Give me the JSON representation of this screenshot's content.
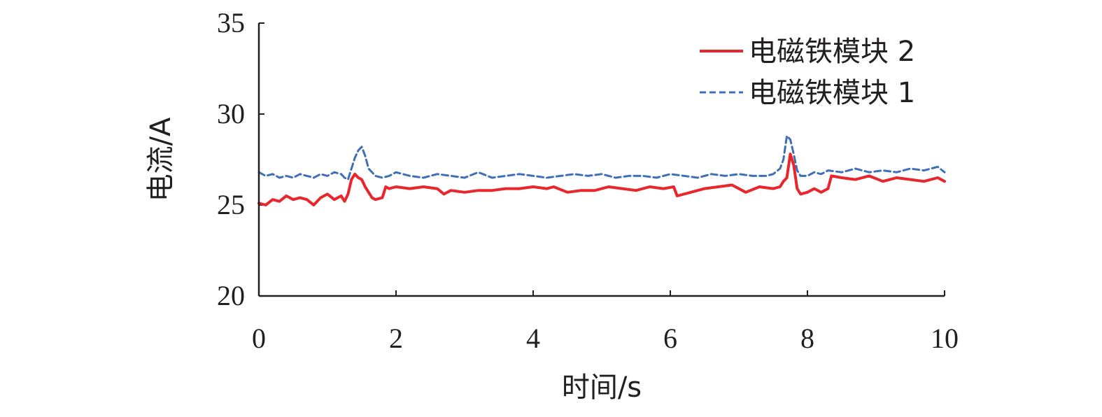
{
  "chart_data": {
    "type": "line",
    "xlabel": "时间/s",
    "ylabel": "电流/A",
    "xlim": [
      0,
      10
    ],
    "ylim": [
      20,
      35
    ],
    "x_ticks": [
      0,
      2,
      4,
      6,
      8,
      10
    ],
    "y_ticks": [
      20,
      25,
      30,
      35
    ],
    "x_tick_labels": [
      "0",
      "2",
      "4",
      "6",
      "8",
      "10"
    ],
    "y_tick_labels": [
      "20",
      "25",
      "30",
      "35"
    ],
    "grid": false,
    "legend_position": "top-right",
    "series": [
      {
        "name": "电磁铁模块 2",
        "color": "#e8262b",
        "style": "solid",
        "x": [
          0,
          0.1,
          0.2,
          0.3,
          0.4,
          0.5,
          0.6,
          0.7,
          0.8,
          0.9,
          1.0,
          1.1,
          1.2,
          1.25,
          1.3,
          1.35,
          1.4,
          1.45,
          1.5,
          1.55,
          1.6,
          1.65,
          1.7,
          1.8,
          1.85,
          1.9,
          2.0,
          2.2,
          2.4,
          2.6,
          2.7,
          2.8,
          3.0,
          3.2,
          3.4,
          3.6,
          3.8,
          4.0,
          4.2,
          4.3,
          4.5,
          4.7,
          4.9,
          5.1,
          5.3,
          5.5,
          5.7,
          5.9,
          6.05,
          6.1,
          6.3,
          6.5,
          6.7,
          6.9,
          7.1,
          7.3,
          7.5,
          7.6,
          7.65,
          7.7,
          7.75,
          7.8,
          7.85,
          7.9,
          8.0,
          8.1,
          8.2,
          8.3,
          8.35,
          8.5,
          8.7,
          8.9,
          9.1,
          9.3,
          9.5,
          9.7,
          9.9,
          10.0
        ],
        "y": [
          25.1,
          25.0,
          25.3,
          25.2,
          25.5,
          25.3,
          25.4,
          25.3,
          25.0,
          25.4,
          25.6,
          25.3,
          25.5,
          25.2,
          25.6,
          26.4,
          26.7,
          26.5,
          26.4,
          26.0,
          25.7,
          25.4,
          25.3,
          25.4,
          26.0,
          25.9,
          26.0,
          25.9,
          26.0,
          25.9,
          25.6,
          25.8,
          25.7,
          25.8,
          25.8,
          25.9,
          25.9,
          26.0,
          25.9,
          26.0,
          25.7,
          25.8,
          25.8,
          26.0,
          25.9,
          25.8,
          26.0,
          25.9,
          26.0,
          25.5,
          25.7,
          25.9,
          26.0,
          26.1,
          25.7,
          26.0,
          25.9,
          26.0,
          26.3,
          26.5,
          27.8,
          27.2,
          25.9,
          25.6,
          25.7,
          25.9,
          25.7,
          25.9,
          26.6,
          26.5,
          26.4,
          26.6,
          26.3,
          26.5,
          26.4,
          26.3,
          26.5,
          26.3
        ]
      },
      {
        "name": "电磁铁模块 1",
        "color": "#3f6fb6",
        "style": "dashed",
        "x": [
          0,
          0.1,
          0.2,
          0.3,
          0.4,
          0.5,
          0.6,
          0.7,
          0.8,
          0.9,
          1.0,
          1.1,
          1.2,
          1.25,
          1.3,
          1.35,
          1.4,
          1.45,
          1.5,
          1.55,
          1.6,
          1.7,
          1.8,
          1.9,
          2.0,
          2.2,
          2.4,
          2.6,
          2.8,
          3.0,
          3.2,
          3.4,
          3.6,
          3.8,
          4.0,
          4.2,
          4.4,
          4.6,
          4.8,
          5.0,
          5.2,
          5.4,
          5.6,
          5.8,
          6.0,
          6.2,
          6.4,
          6.6,
          6.8,
          7.0,
          7.2,
          7.4,
          7.5,
          7.6,
          7.65,
          7.7,
          7.75,
          7.8,
          7.85,
          7.9,
          8.0,
          8.1,
          8.2,
          8.3,
          8.5,
          8.7,
          8.9,
          9.1,
          9.3,
          9.5,
          9.7,
          9.9,
          10.0
        ],
        "y": [
          26.8,
          26.6,
          26.7,
          26.5,
          26.6,
          26.5,
          26.7,
          26.6,
          26.5,
          26.7,
          26.6,
          26.8,
          26.7,
          26.5,
          26.4,
          27.0,
          27.6,
          28.0,
          28.2,
          27.7,
          27.0,
          26.6,
          26.5,
          26.6,
          26.8,
          26.6,
          26.5,
          26.7,
          26.6,
          26.5,
          26.8,
          26.5,
          26.6,
          26.7,
          26.6,
          26.5,
          26.6,
          26.7,
          26.6,
          26.7,
          26.5,
          26.6,
          26.6,
          26.5,
          26.7,
          26.6,
          26.5,
          26.7,
          26.6,
          26.7,
          26.6,
          26.6,
          26.7,
          27.0,
          27.5,
          28.8,
          28.6,
          27.8,
          26.9,
          26.6,
          26.6,
          26.8,
          26.7,
          26.9,
          26.8,
          27.0,
          26.8,
          26.9,
          26.8,
          27.0,
          26.9,
          27.1,
          26.8
        ]
      }
    ]
  }
}
